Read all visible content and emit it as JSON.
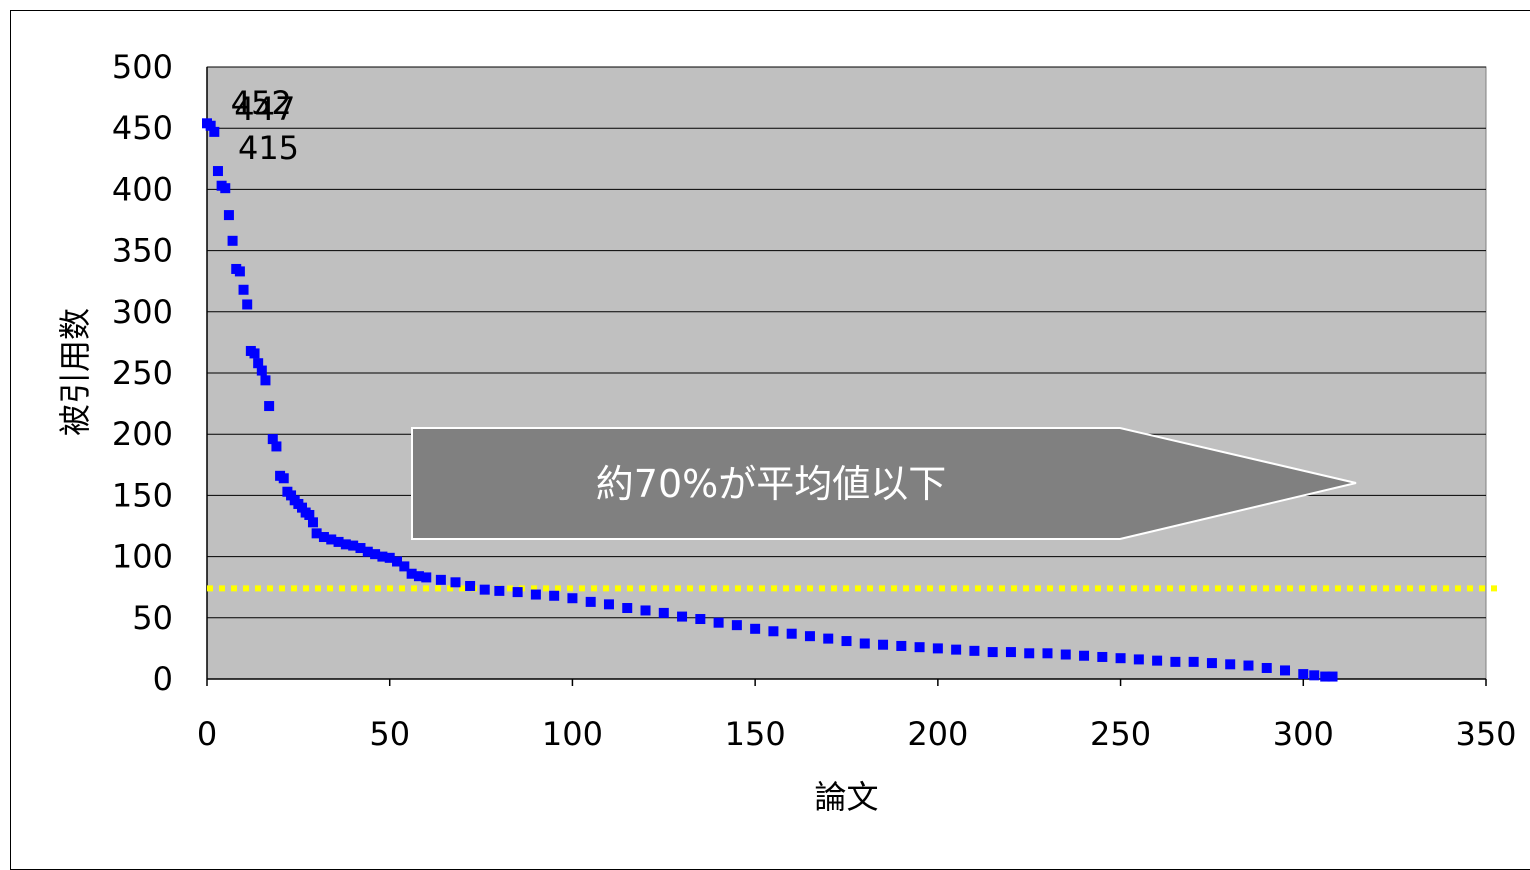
{
  "chart_data": {
    "type": "scatter",
    "xlabel": "論文",
    "ylabel": "被引用数",
    "xlim": [
      0,
      350
    ],
    "ylim": [
      0,
      500
    ],
    "x_ticks": [
      0,
      50,
      100,
      150,
      200,
      250,
      300,
      350
    ],
    "y_ticks": [
      0,
      50,
      100,
      150,
      200,
      250,
      300,
      350,
      400,
      450,
      500
    ],
    "grid": "horizontal",
    "plot_background": "#c0c0c0",
    "marker_color": "#0000ff",
    "mean_line": {
      "y": 74,
      "color": "#ffff00",
      "style": "dotted"
    },
    "callout": {
      "text": "約70%が平均値以下",
      "color": "#808080"
    },
    "data_labels": [
      {
        "x": 1,
        "y": 452,
        "text": "452"
      },
      {
        "x": 2,
        "y": 447,
        "text": "447"
      },
      {
        "x": 3,
        "y": 415,
        "text": "415"
      }
    ],
    "series": [
      {
        "x": [
          0,
          1,
          2,
          3,
          4,
          5,
          6,
          7,
          8,
          9,
          10,
          11,
          12,
          13,
          14,
          15,
          16,
          17,
          18,
          19,
          20,
          21,
          22,
          23,
          24,
          25,
          26,
          27,
          28,
          29,
          30,
          32,
          34,
          36,
          38,
          40,
          42,
          44,
          46,
          48,
          50,
          52,
          54,
          56,
          58,
          60,
          64,
          68,
          72,
          76,
          80,
          85,
          90,
          95,
          100,
          105,
          110,
          115,
          120,
          125,
          130,
          135,
          140,
          145,
          150,
          155,
          160,
          165,
          170,
          175,
          180,
          185,
          190,
          195,
          200,
          205,
          210,
          215,
          220,
          225,
          230,
          235,
          240,
          245,
          250,
          255,
          260,
          265,
          270,
          275,
          280,
          285,
          290,
          295,
          300,
          303,
          306,
          308
        ],
        "y": [
          454,
          452,
          447,
          415,
          403,
          401,
          379,
          358,
          335,
          333,
          318,
          306,
          268,
          266,
          258,
          252,
          244,
          223,
          196,
          190,
          166,
          164,
          153,
          150,
          146,
          143,
          140,
          136,
          134,
          128,
          119,
          116,
          114,
          112,
          110,
          109,
          107,
          104,
          102,
          100,
          99,
          96,
          92,
          86,
          84,
          83,
          81,
          79,
          76,
          73,
          72,
          71,
          69,
          68,
          66,
          63,
          61,
          58,
          56,
          54,
          51,
          49,
          46,
          44,
          41,
          39,
          37,
          35,
          33,
          31,
          29,
          28,
          27,
          26,
          25,
          24,
          23,
          22,
          22,
          21,
          21,
          20,
          19,
          18,
          17,
          16,
          15,
          14,
          14,
          13,
          12,
          11,
          9,
          7,
          4,
          3,
          2,
          2
        ]
      }
    ]
  }
}
